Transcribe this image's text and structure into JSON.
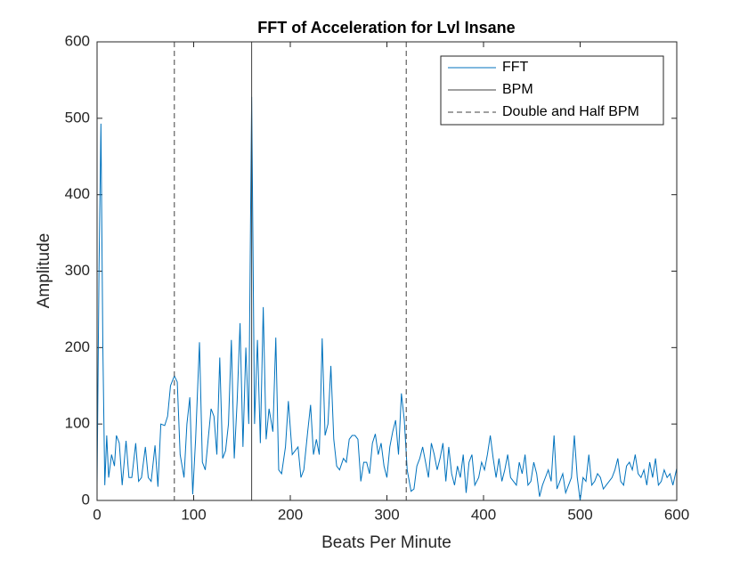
{
  "chart_data": {
    "type": "line",
    "title": "FFT of Acceleration for Lvl Insane",
    "x_label": "Beats Per Minute",
    "y_label": "Amplitude",
    "xlim": [
      0,
      600
    ],
    "xticks": [
      0,
      100,
      200,
      300,
      400,
      500,
      600
    ],
    "ylim": [
      0,
      600
    ],
    "yticks": [
      0,
      100,
      200,
      300,
      400,
      500,
      600
    ],
    "legend": "top-right",
    "series": [
      {
        "name": "FFT",
        "color": "#0072bd",
        "style": "solid",
        "x": [
          0,
          2,
          4,
          6,
          8,
          10,
          12,
          15,
          18,
          20,
          23,
          26,
          30,
          33,
          36,
          40,
          43,
          46,
          50,
          53,
          56,
          60,
          63,
          66,
          70,
          73,
          76,
          80,
          83,
          86,
          90,
          93,
          96,
          99,
          102,
          106,
          109,
          112,
          115,
          118,
          121,
          124,
          127,
          130,
          133,
          136,
          139,
          142,
          145,
          148,
          151,
          154,
          157,
          160,
          163,
          166,
          169,
          172,
          175,
          178,
          182,
          185,
          188,
          191,
          195,
          198,
          202,
          205,
          208,
          211,
          214,
          218,
          221,
          224,
          227,
          230,
          233,
          236,
          239,
          242,
          245,
          248,
          251,
          255,
          258,
          261,
          264,
          267,
          270,
          273,
          276,
          279,
          282,
          285,
          288,
          291,
          294,
          297,
          300,
          303,
          306,
          309,
          312,
          315,
          318,
          321,
          325,
          328,
          331,
          334,
          337,
          340,
          343,
          346,
          349,
          352,
          355,
          358,
          361,
          364,
          367,
          370,
          373,
          376,
          379,
          382,
          385,
          388,
          391,
          395,
          398,
          401,
          404,
          407,
          410,
          413,
          416,
          419,
          422,
          425,
          428,
          431,
          434,
          437,
          440,
          443,
          446,
          449,
          452,
          455,
          458,
          461,
          464,
          467,
          470,
          473,
          476,
          479,
          482,
          485,
          488,
          491,
          494,
          497,
          500,
          503,
          506,
          509,
          512,
          515,
          518,
          521,
          524,
          527,
          530,
          533,
          536,
          539,
          542,
          545,
          548,
          551,
          554,
          557,
          560,
          563,
          566,
          569,
          572,
          575,
          578,
          581,
          584,
          587,
          590,
          593,
          596,
          600
        ],
        "values": [
          20,
          300,
          493,
          200,
          20,
          85,
          30,
          60,
          45,
          85,
          75,
          20,
          78,
          30,
          30,
          75,
          25,
          30,
          70,
          30,
          25,
          72,
          18,
          100,
          98,
          110,
          150,
          163,
          155,
          60,
          30,
          100,
          135,
          8,
          80,
          207,
          50,
          40,
          80,
          120,
          110,
          60,
          187,
          55,
          65,
          100,
          210,
          55,
          130,
          232,
          70,
          200,
          100,
          528,
          100,
          210,
          75,
          253,
          80,
          120,
          90,
          213,
          40,
          35,
          70,
          130,
          60,
          65,
          70,
          30,
          40,
          90,
          125,
          60,
          80,
          60,
          212,
          85,
          100,
          176,
          80,
          45,
          40,
          55,
          50,
          80,
          85,
          85,
          80,
          25,
          50,
          50,
          35,
          75,
          87,
          60,
          75,
          45,
          30,
          70,
          90,
          105,
          60,
          140,
          105,
          40,
          12,
          15,
          45,
          55,
          70,
          50,
          30,
          75,
          60,
          40,
          55,
          75,
          25,
          70,
          35,
          20,
          45,
          30,
          60,
          10,
          50,
          60,
          20,
          30,
          50,
          40,
          60,
          85,
          55,
          30,
          55,
          25,
          40,
          60,
          30,
          25,
          20,
          50,
          35,
          60,
          20,
          25,
          50,
          35,
          5,
          20,
          30,
          40,
          25,
          85,
          15,
          25,
          35,
          10,
          20,
          30,
          85,
          30,
          0,
          30,
          25,
          60,
          20,
          25,
          35,
          30,
          15,
          20,
          25,
          30,
          40,
          55,
          25,
          20,
          45,
          50,
          40,
          60,
          35,
          30,
          40,
          20,
          50,
          30,
          55,
          20,
          25,
          40,
          30,
          35,
          20,
          42
        ]
      },
      {
        "name": "BPM",
        "color": "#404040",
        "style": "solid",
        "x": [
          160
        ]
      },
      {
        "name": "Double and Half BPM",
        "color": "#404040",
        "style": "dashed",
        "x": [
          80,
          320
        ]
      }
    ]
  }
}
